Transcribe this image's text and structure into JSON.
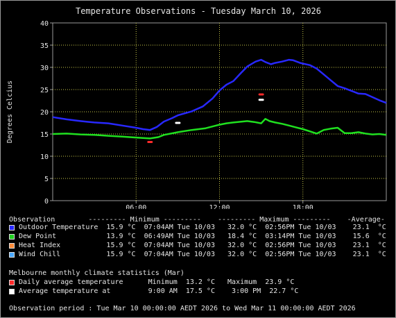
{
  "chart_data": {
    "type": "line",
    "title": "Temperature Observations - Tuesday March 10, 2026",
    "ylabel": "Degrees Celcius",
    "xlabel": "",
    "ylim": [
      0,
      40
    ],
    "yticks": [
      0,
      5,
      10,
      15,
      20,
      25,
      30,
      35,
      40
    ],
    "xlim": [
      0,
      24
    ],
    "xticks": [
      {
        "at": 6,
        "label": "06:00"
      },
      {
        "at": 12,
        "label": "12:00"
      },
      {
        "at": 18,
        "label": "18:00"
      }
    ],
    "grid": true,
    "series": [
      {
        "name": "Outdoor Temperature",
        "color": "#2828ff",
        "points": [
          [
            0,
            18.8
          ],
          [
            1,
            18.3
          ],
          [
            2,
            17.9
          ],
          [
            3,
            17.6
          ],
          [
            4,
            17.4
          ],
          [
            5,
            16.9
          ],
          [
            6,
            16.4
          ],
          [
            6.5,
            16.1
          ],
          [
            7,
            15.9
          ],
          [
            7.5,
            16.6
          ],
          [
            8,
            17.8
          ],
          [
            8.6,
            18.6
          ],
          [
            9,
            19.2
          ],
          [
            10,
            20.1
          ],
          [
            10.8,
            21.2
          ],
          [
            11.5,
            23.0
          ],
          [
            12,
            24.8
          ],
          [
            12.5,
            26.1
          ],
          [
            13,
            26.9
          ],
          [
            13.5,
            28.6
          ],
          [
            14,
            30.2
          ],
          [
            14.6,
            31.3
          ],
          [
            15,
            31.7
          ],
          [
            15.3,
            31.2
          ],
          [
            15.7,
            30.7
          ],
          [
            16,
            31.0
          ],
          [
            16.5,
            31.3
          ],
          [
            17,
            31.7
          ],
          [
            17.3,
            31.6
          ],
          [
            17.8,
            31.0
          ],
          [
            18.5,
            30.5
          ],
          [
            19,
            29.7
          ],
          [
            19.5,
            28.4
          ],
          [
            20,
            27.1
          ],
          [
            20.5,
            25.8
          ],
          [
            21,
            25.3
          ],
          [
            21.5,
            24.7
          ],
          [
            22,
            24.1
          ],
          [
            22.5,
            24.0
          ],
          [
            23,
            23.3
          ],
          [
            23.5,
            22.6
          ],
          [
            24,
            22.0
          ]
        ]
      },
      {
        "name": "Dew Point",
        "color": "#20e020",
        "points": [
          [
            0,
            15.0
          ],
          [
            1,
            15.1
          ],
          [
            2,
            14.9
          ],
          [
            3,
            14.8
          ],
          [
            4,
            14.6
          ],
          [
            5,
            14.4
          ],
          [
            6,
            14.2
          ],
          [
            7,
            14.0
          ],
          [
            7.6,
            14.3
          ],
          [
            8,
            14.8
          ],
          [
            8.5,
            15.1
          ],
          [
            9,
            15.4
          ],
          [
            10,
            15.9
          ],
          [
            11,
            16.3
          ],
          [
            12,
            17.1
          ],
          [
            12.5,
            17.4
          ],
          [
            13,
            17.6
          ],
          [
            14,
            17.9
          ],
          [
            14.5,
            17.7
          ],
          [
            15,
            17.4
          ],
          [
            15.3,
            18.4
          ],
          [
            15.6,
            17.9
          ],
          [
            16,
            17.6
          ],
          [
            16.5,
            17.3
          ],
          [
            17,
            16.9
          ],
          [
            17.5,
            16.5
          ],
          [
            18,
            16.1
          ],
          [
            18.5,
            15.6
          ],
          [
            19,
            15.1
          ],
          [
            19.5,
            15.9
          ],
          [
            20,
            16.2
          ],
          [
            20.5,
            16.4
          ],
          [
            21,
            15.2
          ],
          [
            21.5,
            15.2
          ],
          [
            22,
            15.4
          ],
          [
            22.5,
            15.1
          ],
          [
            23,
            14.9
          ],
          [
            23.5,
            15.0
          ],
          [
            24,
            14.8
          ]
        ]
      }
    ],
    "climate_marks": [
      {
        "name": "Daily average temperature minimum",
        "x": 7.0,
        "y": 13.2,
        "color": "#ff2a2a"
      },
      {
        "name": "Daily average temperature maximum",
        "x": 15.0,
        "y": 23.9,
        "color": "#ff2a2a"
      },
      {
        "name": "Average temperature at 9:00 AM",
        "x": 9.0,
        "y": 17.5,
        "color": "#ffffff"
      },
      {
        "name": "Average temperature at 3:00 PM",
        "x": 15.0,
        "y": 22.7,
        "color": "#ffffff"
      }
    ]
  },
  "legend": {
    "header": "Observation        --------- Minimum ---------    --------- Maximum ---------    -Average-",
    "rows": [
      {
        "color": "#2828ff",
        "text": "Outdoor Temperature  15.9 °C  07:04AM Tue 10/03   32.0 °C  02:56PM Tue 10/03    23.1  °C"
      },
      {
        "color": "#20d020",
        "text": "Dew Point            13.9 °C  06:49AM Tue 10/03   18.4 °C  03:14PM Tue 10/03    15.6  °C"
      },
      {
        "color": "#ff8c3a",
        "text": "Heat Index           15.9 °C  07:04AM Tue 10/03   32.0 °C  02:56PM Tue 10/03    23.1  °C"
      },
      {
        "color": "#4aa8ff",
        "text": "Wind Chill           15.9 °C  07:04AM Tue 10/03   32.0 °C  02:56PM Tue 10/03    23.1  °C"
      }
    ]
  },
  "climate": {
    "header": "Melbourne monthly climate statistics (Mar)",
    "rows": [
      {
        "color": "#ff2a2a",
        "text": "Daily average temperature      Minimum  13.2 °C   Maximum  23.9 °C"
      },
      {
        "color": "#ffffff",
        "text": "Average temperature at         9:00 AM  17.5 °C    3:00 PM  22.7 °C"
      }
    ]
  },
  "observation_period": "Observation period : Tue Mar 10 00:00:00 AEDT 2026 to Wed Mar 11 00:00:00 AEDT 2026"
}
